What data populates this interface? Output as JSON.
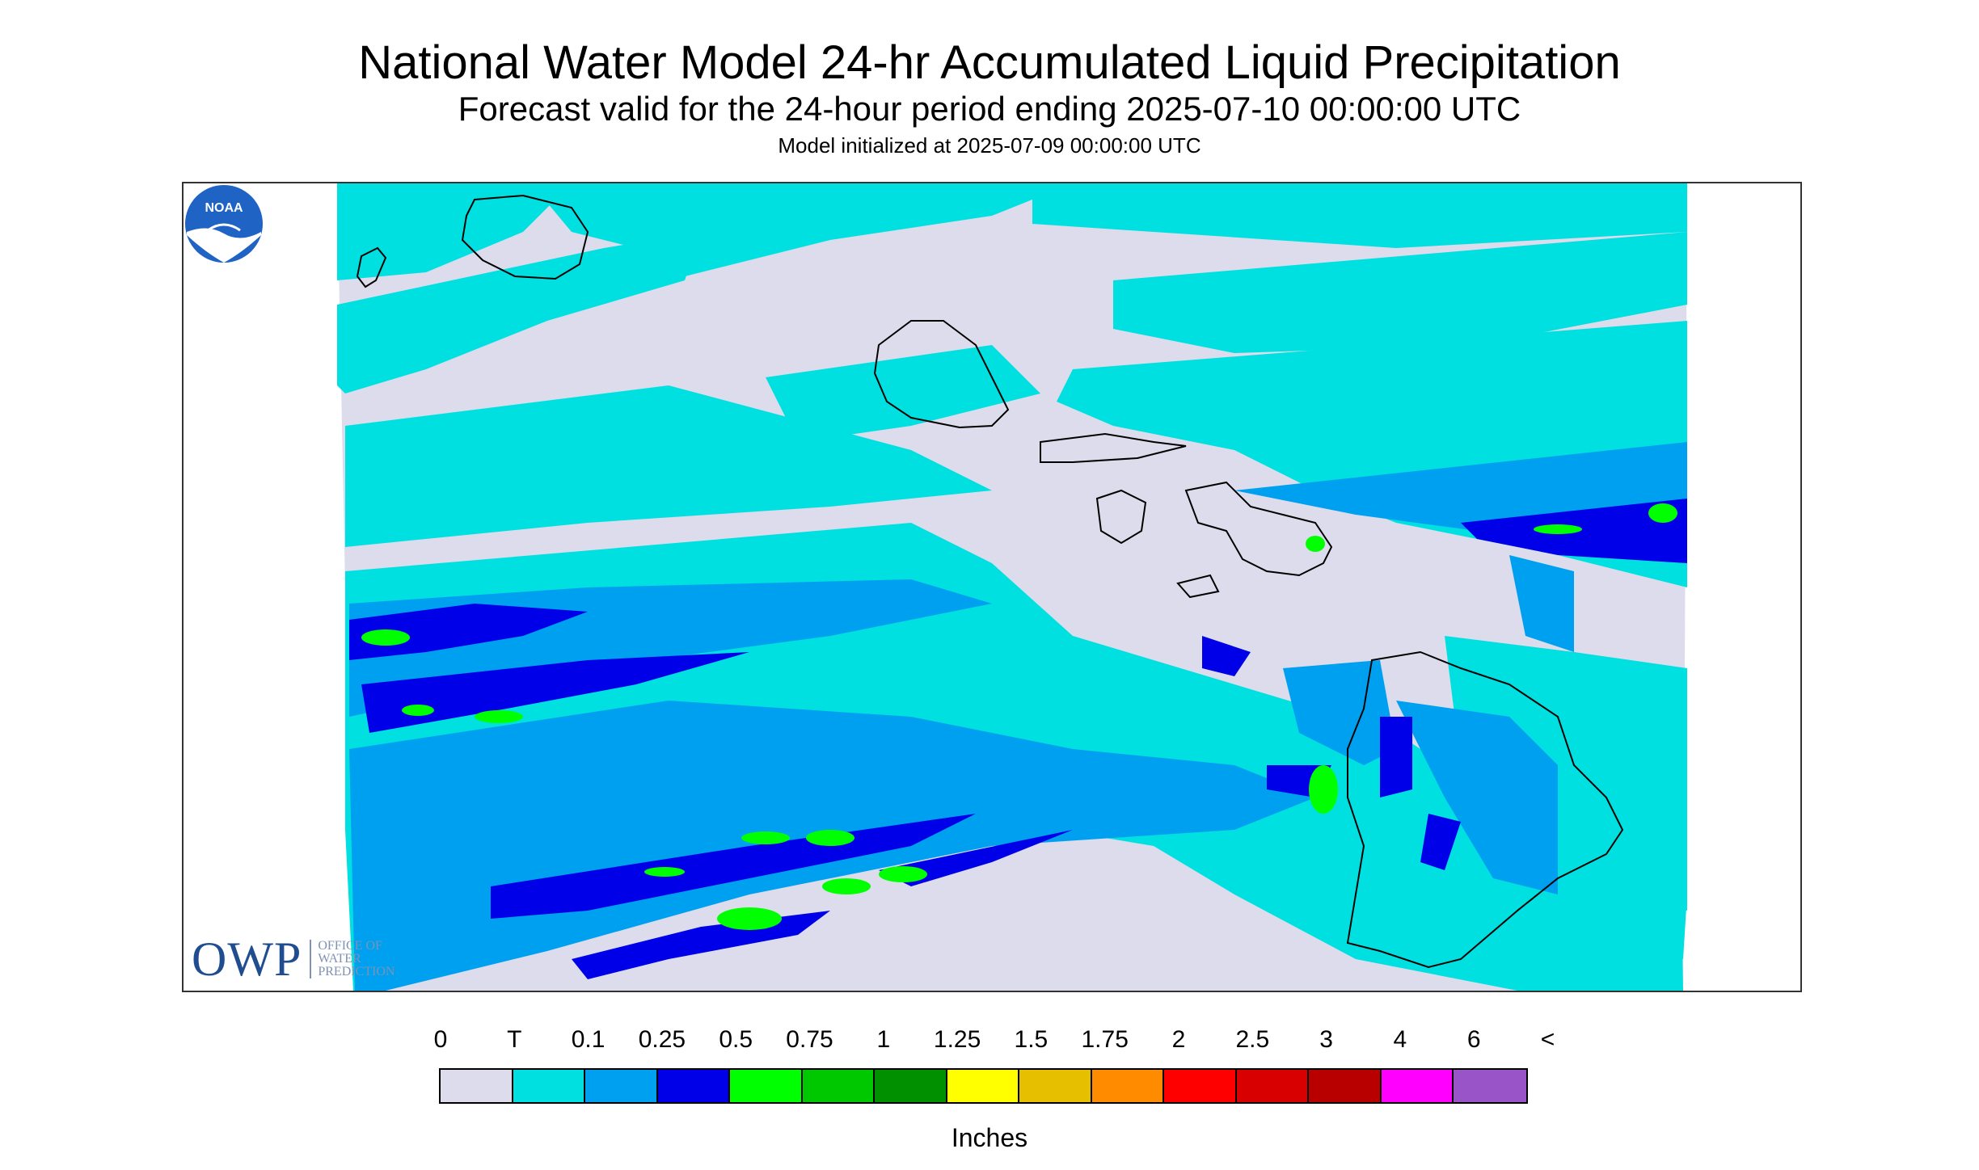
{
  "header": {
    "title": "National Water Model 24-hr Accumulated Liquid Precipitation",
    "subtitle": "Forecast valid for the 24-hour period ending 2025-07-10 00:00:00 UTC",
    "init": "Model initialized at 2025-07-09 00:00:00 UTC"
  },
  "map": {
    "region": "Hawaiian Islands",
    "land_outline_color": "#000000",
    "background_color": "#dcdcec",
    "owp_logo": {
      "mark": "OWP",
      "line1": "OFFICE OF",
      "line2": "WATER",
      "line3": "PREDICTION"
    },
    "noaa_logo": {
      "text": "NOAA"
    }
  },
  "legend": {
    "labels": [
      "0",
      "T",
      "0.1",
      "0.25",
      "0.5",
      "0.75",
      "1",
      "1.25",
      "1.5",
      "1.75",
      "2",
      "2.5",
      "3",
      "4",
      "6",
      "<"
    ],
    "colors": [
      "#dcdcec",
      "#00e0e0",
      "#00a0f0",
      "#0000e8",
      "#00ff00",
      "#00c800",
      "#009000",
      "#ffff00",
      "#e6c000",
      "#ff8c00",
      "#ff0000",
      "#d80000",
      "#b80000",
      "#ff00ff",
      "#9955c8"
    ],
    "units": "Inches"
  }
}
